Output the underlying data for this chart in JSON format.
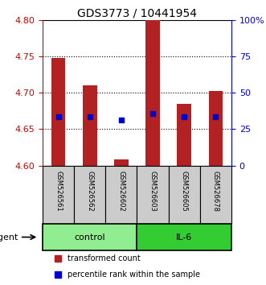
{
  "title": "GDS3773 / 10441954",
  "samples": [
    "GSM526561",
    "GSM526562",
    "GSM526602",
    "GSM526603",
    "GSM526605",
    "GSM526678"
  ],
  "bar_bottoms": [
    4.6,
    4.6,
    4.6,
    4.6,
    4.6,
    4.6
  ],
  "bar_tops": [
    4.748,
    4.71,
    4.608,
    4.8,
    4.685,
    4.703
  ],
  "percentile_vals": [
    4.667,
    4.667,
    4.663,
    4.672,
    4.667,
    4.667
  ],
  "ylim": [
    4.6,
    4.8
  ],
  "yticks_left": [
    4.6,
    4.65,
    4.7,
    4.75,
    4.8
  ],
  "yticks_right": [
    0,
    25,
    50,
    75,
    100
  ],
  "bar_color": "#b22222",
  "dot_color": "#0000cc",
  "groups": [
    {
      "label": "control",
      "indices": [
        0,
        1,
        2
      ],
      "color": "#90ee90"
    },
    {
      "label": "IL-6",
      "indices": [
        3,
        4,
        5
      ],
      "color": "#33cc33"
    }
  ],
  "left_axis_color": "#cc0000",
  "right_axis_color": "#0000cc",
  "sample_bg_color": "#cccccc",
  "bar_width": 0.45,
  "figsize": [
    3.31,
    3.54
  ],
  "dpi": 100
}
